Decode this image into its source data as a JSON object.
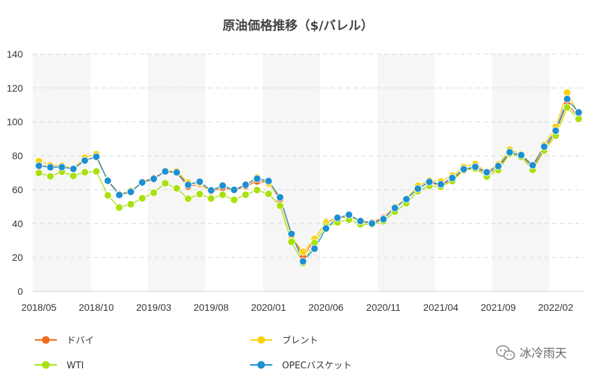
{
  "chart_data": {
    "type": "line",
    "title": "原油価格推移（$/バレル）",
    "ylim": [
      0,
      140
    ],
    "yticks": [
      0,
      20,
      40,
      60,
      80,
      100,
      120,
      140
    ],
    "x": [
      "2018/05",
      "2018/06",
      "2018/07",
      "2018/08",
      "2018/09",
      "2018/10",
      "2018/11",
      "2018/12",
      "2019/01",
      "2019/02",
      "2019/03",
      "2019/04",
      "2019/05",
      "2019/06",
      "2019/07",
      "2019/08",
      "2019/09",
      "2019/10",
      "2019/11",
      "2019/12",
      "2020/01",
      "2020/02",
      "2020/03",
      "2020/04",
      "2020/05",
      "2020/06",
      "2020/07",
      "2020/08",
      "2020/09",
      "2020/10",
      "2020/11",
      "2020/12",
      "2021/01",
      "2021/02",
      "2021/03",
      "2021/04",
      "2021/05",
      "2021/06",
      "2021/07",
      "2021/08",
      "2021/09",
      "2021/10",
      "2021/11",
      "2021/12",
      "2022/01",
      "2022/02",
      "2022/03",
      "2022/04"
    ],
    "xtick_labels": [
      "2018/05",
      "2018/10",
      "2019/03",
      "2019/08",
      "2020/01",
      "2020/06",
      "2020/11",
      "2021/04",
      "2021/09",
      "2022/02"
    ],
    "grid": true,
    "legend_position": "bottom",
    "series": [
      {
        "name": "ドバイ",
        "color": "#f26b1d",
        "values": [
          74.2,
          73.6,
          73.1,
          72.6,
          77.2,
          79.4,
          65.6,
          57.3,
          59.1,
          64.6,
          66.9,
          70.8,
          69.9,
          61.8,
          63.2,
          59.1,
          61.1,
          59.6,
          62.1,
          64.9,
          64.3,
          54.2,
          33.6,
          20.4,
          30.6,
          40.9,
          43.3,
          44.0,
          41.5,
          40.7,
          43.4,
          49.8,
          54.8,
          60.9,
          64.4,
          62.4,
          66.2,
          71.6,
          72.9,
          69.5,
          72.6,
          81.7,
          80.3,
          73.2,
          83.5,
          94.2,
          110.9,
          102.7
        ]
      },
      {
        "name": "ブレント",
        "color": "#f9d20c",
        "values": [
          76.9,
          74.4,
          74.2,
          72.5,
          78.9,
          81.0,
          64.8,
          57.4,
          59.4,
          64.0,
          66.1,
          71.2,
          71.1,
          64.2,
          63.9,
          59.0,
          62.8,
          59.6,
          63.2,
          67.3,
          63.7,
          55.5,
          32.0,
          23.3,
          31.0,
          40.3,
          43.2,
          44.7,
          40.9,
          40.2,
          42.7,
          49.9,
          54.6,
          62.3,
          65.4,
          64.8,
          68.3,
          73.4,
          75.2,
          70.5,
          74.9,
          83.7,
          81.1,
          74.2,
          86.5,
          97.1,
          117.3,
          104.6
        ]
      },
      {
        "name": "WTI",
        "color": "#a8e10c",
        "values": [
          69.9,
          67.9,
          70.6,
          68.1,
          70.3,
          70.8,
          56.7,
          49.5,
          51.4,
          54.9,
          58.2,
          63.8,
          60.8,
          54.7,
          57.4,
          54.8,
          57.0,
          54.0,
          57.0,
          59.8,
          57.5,
          50.5,
          29.2,
          16.7,
          28.6,
          38.3,
          40.7,
          42.4,
          39.6,
          39.5,
          41.4,
          47.0,
          52.0,
          59.1,
          62.3,
          61.7,
          65.1,
          71.4,
          72.4,
          67.7,
          71.5,
          81.2,
          79.3,
          71.7,
          83.1,
          91.8,
          108.5,
          101.8
        ]
      },
      {
        "name": "OPECバスケット",
        "color": "#1e90d2",
        "values": [
          74.1,
          73.2,
          73.3,
          72.3,
          77.2,
          79.4,
          65.3,
          56.9,
          58.7,
          64.3,
          66.4,
          70.8,
          70.2,
          62.9,
          64.7,
          59.6,
          62.4,
          59.9,
          62.9,
          66.5,
          65.1,
          55.5,
          33.9,
          17.7,
          25.2,
          37.1,
          43.4,
          45.2,
          41.5,
          40.1,
          42.6,
          49.2,
          54.4,
          60.6,
          64.6,
          63.2,
          66.9,
          72.1,
          73.5,
          70.3,
          73.9,
          82.1,
          80.4,
          74.4,
          85.4,
          94.8,
          113.5,
          105.6
        ]
      }
    ]
  },
  "watermark": {
    "text": "冰冷雨天",
    "icon": "wechat-icon"
  }
}
